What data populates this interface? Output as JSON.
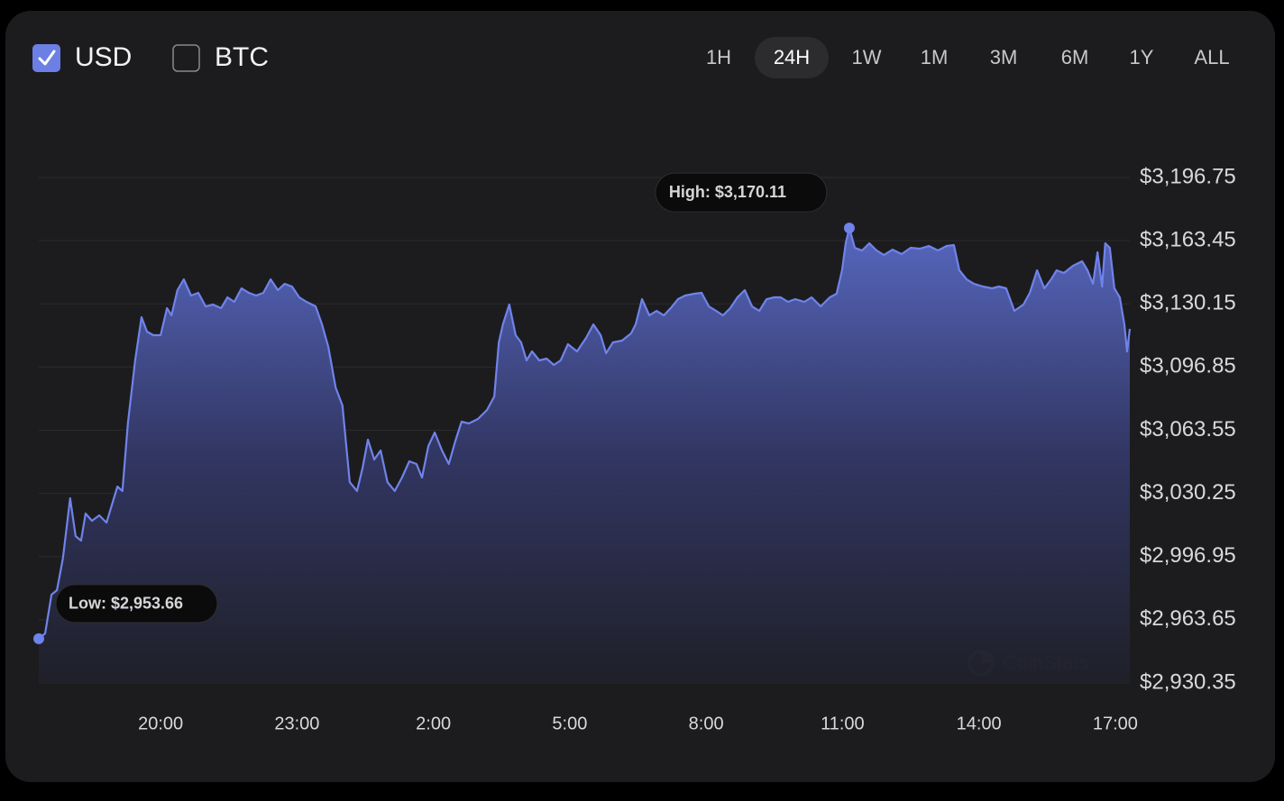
{
  "controls": {
    "currencies": [
      {
        "label": "USD",
        "checked": true
      },
      {
        "label": "BTC",
        "checked": false
      }
    ],
    "ranges": [
      {
        "label": "1H",
        "active": false
      },
      {
        "label": "24H",
        "active": true
      },
      {
        "label": "1W",
        "active": false
      },
      {
        "label": "1M",
        "active": false
      },
      {
        "label": "3M",
        "active": false
      },
      {
        "label": "6M",
        "active": false
      },
      {
        "label": "1Y",
        "active": false
      },
      {
        "label": "ALL",
        "active": false
      }
    ]
  },
  "watermark": "CoinStats",
  "chart_data": {
    "type": "area",
    "high_label": "High: $3,170.11",
    "low_label": "Low: $2,953.66",
    "x": [
      17.32,
      17.46,
      17.6,
      17.72,
      17.85,
      18.01,
      18.13,
      18.25,
      18.35,
      18.49,
      18.65,
      18.81,
      18.93,
      19.05,
      19.16,
      19.28,
      19.44,
      19.58,
      19.7,
      19.84,
      20.0,
      20.14,
      20.24,
      20.37,
      20.51,
      20.67,
      20.83,
      20.99,
      21.15,
      21.33,
      21.47,
      21.62,
      21.78,
      21.94,
      22.1,
      22.26,
      22.42,
      22.58,
      22.73,
      22.89,
      23.05,
      23.21,
      23.41,
      23.55,
      23.69,
      23.85,
      24.0,
      24.16,
      24.32,
      24.44,
      24.56,
      24.7,
      24.84,
      24.99,
      25.15,
      25.31,
      25.47,
      25.63,
      25.75,
      25.89,
      26.03,
      26.19,
      26.34,
      26.48,
      26.62,
      26.78,
      26.98,
      27.18,
      27.34,
      27.44,
      27.53,
      27.67,
      27.81,
      27.93,
      28.05,
      28.17,
      28.33,
      28.49,
      28.65,
      28.8,
      28.96,
      29.16,
      29.36,
      29.52,
      29.68,
      29.8,
      29.95,
      30.15,
      30.35,
      30.45,
      30.59,
      30.75,
      30.91,
      31.07,
      31.22,
      31.38,
      31.54,
      31.74,
      31.9,
      32.06,
      32.22,
      32.37,
      32.53,
      32.69,
      32.85,
      33.01,
      33.17,
      33.33,
      33.49,
      33.64,
      33.8,
      33.96,
      34.16,
      34.32,
      34.52,
      34.72,
      34.87,
      34.99,
      35.07,
      35.15,
      35.27,
      35.43,
      35.59,
      35.75,
      35.91,
      36.1,
      36.3,
      36.5,
      36.7,
      36.9,
      37.1,
      37.29,
      37.45,
      37.57,
      37.73,
      37.89,
      38.09,
      38.29,
      38.44,
      38.6,
      38.78,
      38.98,
      39.12,
      39.28,
      39.44,
      39.59,
      39.71,
      39.87,
      40.07,
      40.27,
      40.39,
      40.51,
      40.61,
      40.71,
      40.78,
      40.88,
      40.98,
      41.1,
      41.2,
      41.26,
      41.32
    ],
    "series": [
      {
        "name": "USD",
        "color": "#7083ea",
        "values": [
          2953.66,
          2956.47,
          2976.88,
          2979.26,
          2995.88,
          3027.7,
          3007.75,
          3005.38,
          3019.62,
          3015.82,
          3018.67,
          3014.87,
          3024.37,
          3033.87,
          3031.5,
          3067.11,
          3100.35,
          3123.15,
          3115.55,
          3113.65,
          3113.65,
          3127.89,
          3124.09,
          3137.39,
          3143.09,
          3134.54,
          3135.97,
          3128.84,
          3129.79,
          3127.89,
          3133.59,
          3131.22,
          3138.34,
          3135.97,
          3134.54,
          3135.97,
          3143.09,
          3137.39,
          3140.72,
          3139.29,
          3133.59,
          3131.22,
          3128.84,
          3119.35,
          3107.47,
          3086.11,
          3076.61,
          3036.24,
          3031.5,
          3043.37,
          3058.56,
          3048.12,
          3052.86,
          3036.24,
          3031.5,
          3038.62,
          3047.17,
          3045.74,
          3038.62,
          3055.24,
          3062.36,
          3052.86,
          3045.74,
          3057.61,
          3068.06,
          3067.11,
          3069.48,
          3074.23,
          3081.36,
          3109.85,
          3119.35,
          3129.79,
          3113.65,
          3109.85,
          3100.35,
          3105.1,
          3100.35,
          3101.3,
          3097.98,
          3100.35,
          3108.9,
          3105.1,
          3112.22,
          3119.35,
          3113.65,
          3104.15,
          3109.85,
          3110.8,
          3114.6,
          3119.35,
          3132.64,
          3124.09,
          3126.47,
          3124.09,
          3127.89,
          3132.64,
          3134.54,
          3135.49,
          3135.97,
          3128.84,
          3126.47,
          3124.09,
          3127.89,
          3133.59,
          3137.39,
          3128.84,
          3126.47,
          3132.64,
          3133.59,
          3133.59,
          3131.22,
          3132.64,
          3131.22,
          3133.59,
          3128.84,
          3133.59,
          3135.49,
          3147.84,
          3162.08,
          3170.11,
          3159.71,
          3158.29,
          3162.08,
          3158.29,
          3155.91,
          3158.76,
          3156.39,
          3159.71,
          3159.23,
          3160.66,
          3158.29,
          3160.66,
          3161.13,
          3147.84,
          3143.09,
          3140.72,
          3139.29,
          3138.34,
          3139.29,
          3138.34,
          3126.47,
          3129.79,
          3135.97,
          3147.84,
          3138.34,
          3143.09,
          3147.84,
          3146.41,
          3150.21,
          3152.59,
          3147.84,
          3140.72,
          3157.34,
          3139.29,
          3162.08,
          3159.71,
          3138.34,
          3133.59,
          3119.35,
          3105.1,
          3116.97
        ]
      }
    ],
    "xlim": [
      17.32,
      41.32
    ],
    "xticks": [
      {
        "value": 20,
        "label": "20:00"
      },
      {
        "value": 23,
        "label": "23:00"
      },
      {
        "value": 26,
        "label": "2:00"
      },
      {
        "value": 29,
        "label": "5:00"
      },
      {
        "value": 32,
        "label": "8:00"
      },
      {
        "value": 35,
        "label": "11:00"
      },
      {
        "value": 38,
        "label": "14:00"
      },
      {
        "value": 41,
        "label": "17:00"
      }
    ],
    "ylim": [
      2930.35,
      3196.75
    ],
    "yticks": [
      {
        "value": 3196.75,
        "label": "$3,196.75"
      },
      {
        "value": 3163.45,
        "label": "$3,163.45"
      },
      {
        "value": 3130.15,
        "label": "$3,130.15"
      },
      {
        "value": 3096.85,
        "label": "$3,096.85"
      },
      {
        "value": 3063.55,
        "label": "$3,063.55"
      },
      {
        "value": 3030.25,
        "label": "$3,030.25"
      },
      {
        "value": 2996.95,
        "label": "$2,996.95"
      },
      {
        "value": 2963.65,
        "label": "$2,963.65"
      },
      {
        "value": 2930.35,
        "label": "$2,930.35"
      }
    ],
    "grid": true
  }
}
